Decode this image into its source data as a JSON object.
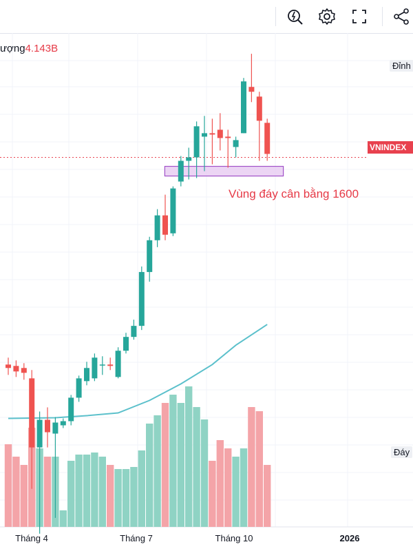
{
  "toolbar": {
    "icons": [
      "quick-analysis-icon",
      "settings-icon",
      "fullscreen-icon",
      "share-icon"
    ]
  },
  "volume_label": {
    "text": "ượng",
    "value": "4.143B"
  },
  "peak_label": "Đỉnh",
  "trough_label": "Đáy",
  "price_badge": "VNINDEX",
  "annotation": "Vùng đáy cân bằng 1600",
  "colors": {
    "up": "#26a69a",
    "down": "#ef5350",
    "vol_up": "#8fd3c4",
    "vol_down": "#f4a4a8",
    "ma": "#5bc0cb",
    "zone_fill": "#e6c7f0",
    "zone_stroke": "#a050c8",
    "grid": "#f0f3fa"
  },
  "chart_data": {
    "type": "candlestick",
    "xlabel": "",
    "ylabel": "",
    "time_ticks": [
      "Tháng 4",
      "Tháng 7",
      "Tháng 10",
      "2026"
    ],
    "price_range": [
      1050,
      1800
    ],
    "candles": [
      {
        "o": 1320,
        "h": 1330,
        "l": 1305,
        "c": 1315
      },
      {
        "o": 1318,
        "h": 1326,
        "l": 1302,
        "c": 1310
      },
      {
        "o": 1315,
        "h": 1322,
        "l": 1298,
        "c": 1308
      },
      {
        "o": 1300,
        "h": 1312,
        "l": 1140,
        "c": 1200
      },
      {
        "o": 1200,
        "h": 1252,
        "l": 1075,
        "c": 1240
      },
      {
        "o": 1240,
        "h": 1258,
        "l": 1200,
        "c": 1222
      },
      {
        "o": 1220,
        "h": 1244,
        "l": 1098,
        "c": 1236
      },
      {
        "o": 1232,
        "h": 1242,
        "l": 1228,
        "c": 1238
      },
      {
        "o": 1238,
        "h": 1276,
        "l": 1232,
        "c": 1272
      },
      {
        "o": 1272,
        "h": 1304,
        "l": 1266,
        "c": 1300
      },
      {
        "o": 1296,
        "h": 1324,
        "l": 1290,
        "c": 1315
      },
      {
        "o": 1300,
        "h": 1336,
        "l": 1296,
        "c": 1330
      },
      {
        "o": 1320,
        "h": 1332,
        "l": 1305,
        "c": 1320
      },
      {
        "o": 1320,
        "h": 1330,
        "l": 1312,
        "c": 1318
      },
      {
        "o": 1302,
        "h": 1345,
        "l": 1300,
        "c": 1340
      },
      {
        "o": 1340,
        "h": 1366,
        "l": 1336,
        "c": 1360
      },
      {
        "o": 1360,
        "h": 1385,
        "l": 1356,
        "c": 1376
      },
      {
        "o": 1376,
        "h": 1462,
        "l": 1370,
        "c": 1454
      },
      {
        "o": 1454,
        "h": 1505,
        "l": 1440,
        "c": 1500
      },
      {
        "o": 1500,
        "h": 1545,
        "l": 1490,
        "c": 1536
      },
      {
        "o": 1536,
        "h": 1566,
        "l": 1500,
        "c": 1508
      },
      {
        "o": 1510,
        "h": 1578,
        "l": 1506,
        "c": 1575
      },
      {
        "o": 1585,
        "h": 1622,
        "l": 1578,
        "c": 1615
      },
      {
        "o": 1615,
        "h": 1634,
        "l": 1588,
        "c": 1620
      },
      {
        "o": 1620,
        "h": 1672,
        "l": 1590,
        "c": 1665
      },
      {
        "o": 1650,
        "h": 1680,
        "l": 1600,
        "c": 1655
      },
      {
        "o": 1655,
        "h": 1676,
        "l": 1610,
        "c": 1653
      },
      {
        "o": 1660,
        "h": 1684,
        "l": 1630,
        "c": 1648
      },
      {
        "o": 1650,
        "h": 1660,
        "l": 1605,
        "c": 1648
      },
      {
        "o": 1635,
        "h": 1650,
        "l": 1620,
        "c": 1645
      },
      {
        "o": 1655,
        "h": 1735,
        "l": 1655,
        "c": 1730
      },
      {
        "o": 1722,
        "h": 1770,
        "l": 1700,
        "c": 1715
      },
      {
        "o": 1708,
        "h": 1715,
        "l": 1615,
        "c": 1673
      },
      {
        "o": 1670,
        "h": 1676,
        "l": 1615,
        "c": 1625
      }
    ],
    "ma_line": [
      [
        0,
        1242
      ],
      [
        6,
        1243
      ],
      [
        10,
        1246
      ],
      [
        14,
        1250
      ],
      [
        18,
        1268
      ],
      [
        22,
        1292
      ],
      [
        26,
        1320
      ],
      [
        29,
        1348
      ],
      [
        33,
        1378
      ]
    ],
    "volumes": [
      0.4,
      0.34,
      0.3,
      0.48,
      0.38,
      0.34,
      0.34,
      0.08,
      0.32,
      0.35,
      0.35,
      0.36,
      0.34,
      0.3,
      0.28,
      0.28,
      0.29,
      0.37,
      0.5,
      0.54,
      0.6,
      0.64,
      0.6,
      0.68,
      0.58,
      0.52,
      0.32,
      0.42,
      0.38,
      0.34,
      0.38,
      0.58,
      0.56,
      0.3
    ],
    "balance_zone": {
      "label": "Vùng đáy cân bằng 1600",
      "low": 1593,
      "high": 1607,
      "from_index": 21,
      "to_index": 34
    },
    "last_price_line": 1620
  }
}
